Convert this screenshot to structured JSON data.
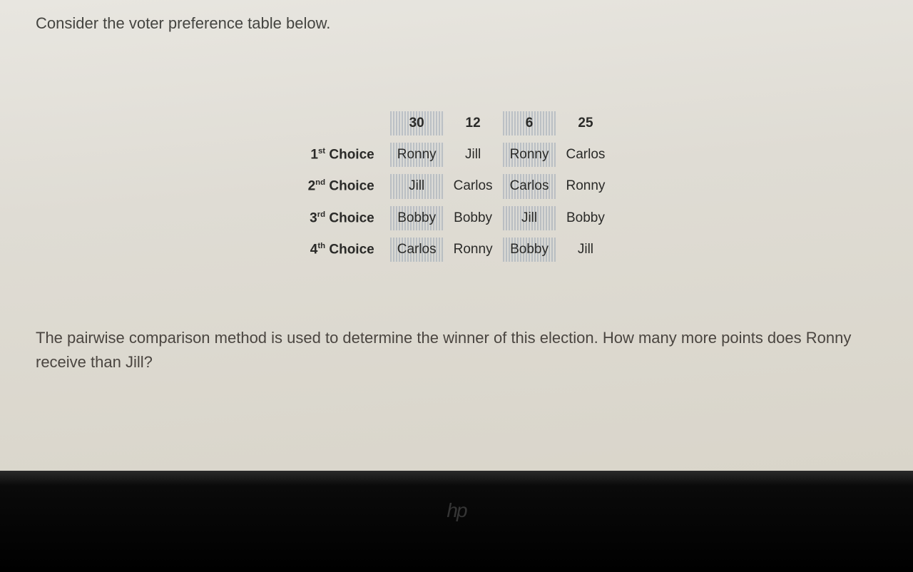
{
  "intro": "Consider the voter preference table below.",
  "question": "The pairwise comparison method is used to determine the winner of this election. How many more points does Ronny receive than Jill?",
  "table": {
    "voter_counts": [
      "30",
      "12",
      "6",
      "25"
    ],
    "row_labels": {
      "r1_pre": "1",
      "r1_sup": "st",
      "r1_post": " Choice",
      "r2_pre": "2",
      "r2_sup": "nd",
      "r2_post": " Choice",
      "r3_pre": "3",
      "r3_sup": "rd",
      "r3_post": " Choice",
      "r4_pre": "4",
      "r4_sup": "th",
      "r4_post": " Choice"
    },
    "cells": {
      "r1c1": "Ronny",
      "r1c2": "Jill",
      "r1c3": "Ronny",
      "r1c4": "Carlos",
      "r2c1": "Jill",
      "r2c2": "Carlos",
      "r2c3": "Carlos",
      "r2c4": "Ronny",
      "r3c1": "Bobby",
      "r3c2": "Bobby",
      "r3c3": "Jill",
      "r3c4": "Bobby",
      "r4c1": "Carlos",
      "r4c2": "Ronny",
      "r4c3": "Bobby",
      "r4c4": "Jill"
    },
    "striped_columns": [
      0,
      2
    ],
    "colors": {
      "page_bg_top": "#e8e6e0",
      "page_bg_bottom": "#d9d5ca",
      "text": "#444440",
      "cell_text": "#2a2a28",
      "stripe_dark": "rgba(140,155,175,0.45)",
      "stripe_light": "rgba(210,215,220,0.25)",
      "bezel_bg": "#0a0a0a",
      "logo": "#555555"
    },
    "fontsize_body": 22,
    "fontsize_cell": 19
  },
  "logo": "hp"
}
